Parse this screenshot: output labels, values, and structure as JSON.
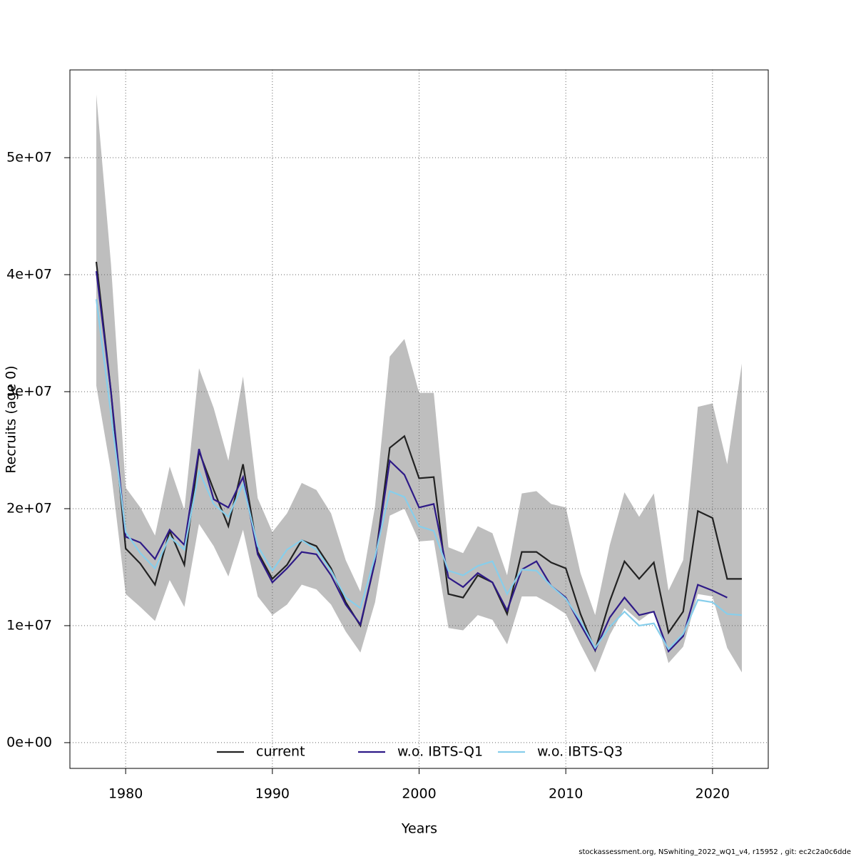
{
  "chart_data": {
    "type": "line",
    "x_label": "Years",
    "y_label": "Recruits (age 0)",
    "footnote": "stockassessment.org, NSwhiting_2022_wQ1_v4, r15952 , git: ec2c2a0c6dde",
    "x": [
      1978,
      1979,
      1980,
      1981,
      1982,
      1983,
      1984,
      1985,
      1986,
      1987,
      1988,
      1989,
      1990,
      1991,
      1992,
      1993,
      1994,
      1995,
      1996,
      1997,
      1998,
      1999,
      2000,
      2001,
      2002,
      2003,
      2004,
      2005,
      2006,
      2007,
      2008,
      2009,
      2010,
      2011,
      2012,
      2013,
      2014,
      2015,
      2016,
      2017,
      2018,
      2019,
      2020,
      2021,
      2022
    ],
    "band": {
      "color": "#bebebe",
      "upper": [
        55400000.0,
        40900000.0,
        21800000.0,
        20100000.0,
        17700000.0,
        23600000.0,
        19900000.0,
        32000000.0,
        28600000.0,
        24100000.0,
        31300000.0,
        20900000.0,
        18000000.0,
        19600000.0,
        22200000.0,
        21600000.0,
        19600000.0,
        15600000.0,
        12900000.0,
        20200000.0,
        33000000.0,
        34500000.0,
        29900000.0,
        29900000.0,
        16700000.0,
        16200000.0,
        18500000.0,
        17900000.0,
        14300000.0,
        21300000.0,
        21500000.0,
        20400000.0,
        20100000.0,
        14500000.0,
        10900000.0,
        16900000.0,
        21400000.0,
        19300000.0,
        21300000.0,
        13000000.0,
        15600000.0,
        28700000.0,
        29000000.0,
        23800000.0,
        32400000.0
      ],
      "lower": [
        30500000.0,
        23200000.0,
        12700000.0,
        11600000.0,
        10400000.0,
        13900000.0,
        11600000.0,
        18700000.0,
        16800000.0,
        14200000.0,
        18200000.0,
        12500000.0,
        10900000.0,
        11800000.0,
        13500000.0,
        13100000.0,
        11800000.0,
        9500000.0,
        7700000.0,
        12000000.0,
        19400000.0,
        20000000.0,
        17200000.0,
        17300000.0,
        9800000.0,
        9600000.0,
        10900000.0,
        10500000.0,
        8400000.0,
        12500000.0,
        12500000.0,
        11800000.0,
        11000000.0,
        8400000.0,
        6000000.0,
        9200000.0,
        11500000.0,
        10400000.0,
        11300000.0,
        6800000.0,
        8200000.0,
        12700000.0,
        12500000.0,
        8100000.0,
        6000000.0
      ]
    },
    "series": [
      {
        "name": "current",
        "color": "#222222",
        "values": [
          41100000.0,
          30000000.0,
          16600000.0,
          15300000.0,
          13500000.0,
          18100000.0,
          15200000.0,
          24900000.0,
          21600000.0,
          18500000.0,
          23800000.0,
          16300000.0,
          14000000.0,
          15200000.0,
          17300000.0,
          16800000.0,
          14900000.0,
          12000000.0,
          10000000.0,
          15500000.0,
          25200000.0,
          26200000.0,
          22600000.0,
          22700000.0,
          12700000.0,
          12400000.0,
          14300000.0,
          13700000.0,
          11000000.0,
          16300000.0,
          16300000.0,
          15400000.0,
          14900000.0,
          11000000.0,
          7900000.0,
          12100000.0,
          15500000.0,
          14000000.0,
          15400000.0,
          9400000.0,
          11200000.0,
          19800000.0,
          19200000.0,
          14000000.0,
          14000000.0
        ]
      },
      {
        "name": "w.o. IBTS-Q1",
        "color": "#2e1a87",
        "values": [
          40300000.0,
          30000000.0,
          17600000.0,
          17100000.0,
          15700000.0,
          18200000.0,
          16900000.0,
          25100000.0,
          20800000.0,
          20100000.0,
          22700000.0,
          16100000.0,
          13700000.0,
          14900000.0,
          16300000.0,
          16100000.0,
          14300000.0,
          11800000.0,
          10100000.0,
          15500000.0,
          24100000.0,
          22900000.0,
          20100000.0,
          20400000.0,
          14100000.0,
          13300000.0,
          14500000.0,
          13700000.0,
          11300000.0,
          14800000.0,
          15500000.0,
          13400000.0,
          12400000.0,
          10100000.0,
          7900000.0,
          10700000.0,
          12400000.0,
          10900000.0,
          11200000.0,
          7800000.0,
          9100000.0,
          13500000.0,
          13000000.0,
          12400000.0,
          null
        ]
      },
      {
        "name": "w.o. IBTS-Q3",
        "color": "#87ceeb",
        "values": [
          37900000.0,
          28100000.0,
          18000000.0,
          16200000.0,
          14900000.0,
          17600000.0,
          16500000.0,
          23200000.0,
          20400000.0,
          19300000.0,
          22100000.0,
          16800000.0,
          14700000.0,
          16500000.0,
          17300000.0,
          16500000.0,
          14700000.0,
          12400000.0,
          11500000.0,
          15900000.0,
          21500000.0,
          21000000.0,
          18500000.0,
          18100000.0,
          14700000.0,
          14300000.0,
          15100000.0,
          15500000.0,
          12700000.0,
          14800000.0,
          14700000.0,
          13400000.0,
          12300000.0,
          10400000.0,
          8100000.0,
          9900000.0,
          11200000.0,
          10000000.0,
          10200000.0,
          8000000.0,
          9300000.0,
          12200000.0,
          12000000.0,
          11000000.0,
          10900000.0
        ]
      }
    ],
    "xlim": [
      1976.2,
      2023.8
    ],
    "xticks": [
      1980,
      1990,
      2000,
      2010,
      2020
    ],
    "ylim": [
      -2200000.0,
      57500000.0
    ],
    "yticks": [
      {
        "value": 0,
        "label": "0e+00"
      },
      {
        "value": 10000000,
        "label": "1e+07"
      },
      {
        "value": 20000000,
        "label": "2e+07"
      },
      {
        "value": 30000000,
        "label": "3e+07"
      },
      {
        "value": 40000000,
        "label": "4e+07"
      },
      {
        "value": 50000000,
        "label": "5e+07"
      }
    ],
    "grid": true,
    "legend": "bottom"
  }
}
